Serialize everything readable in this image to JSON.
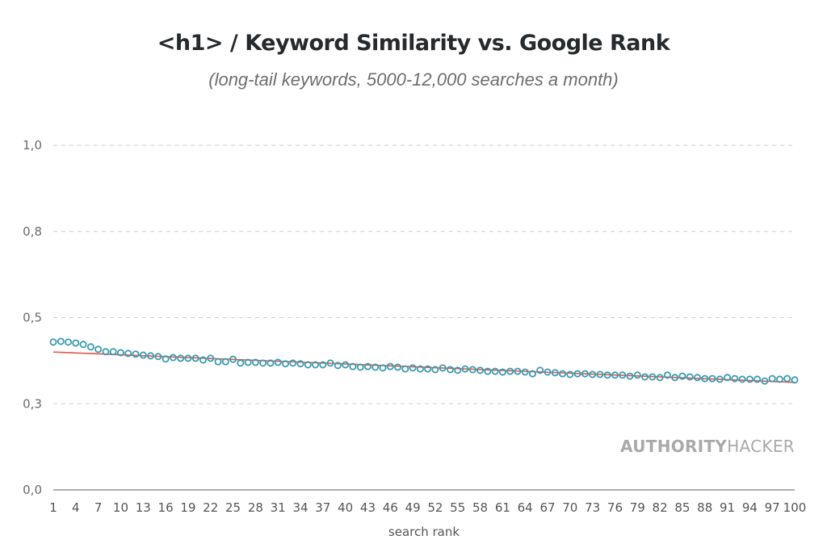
{
  "chart_data": {
    "type": "scatter",
    "title": "<h1> / Keyword Similarity vs. Google Rank",
    "subtitle": "(long-tail keywords, 5000-12,000 searches a month)",
    "xlabel": "search rank",
    "ylabel": "",
    "xlim": [
      1,
      100
    ],
    "ylim": [
      0,
      1
    ],
    "y_ticks": [
      {
        "value": 1.0,
        "label": "1,0"
      },
      {
        "value": 0.75,
        "label": "0,8"
      },
      {
        "value": 0.5,
        "label": "0,5"
      },
      {
        "value": 0.25,
        "label": "0,3"
      },
      {
        "value": 0.0,
        "label": "0,0"
      }
    ],
    "x_ticks": [
      "1",
      "4",
      "7",
      "10",
      "13",
      "16",
      "19",
      "22",
      "25",
      "28",
      "31",
      "34",
      "37",
      "40",
      "43",
      "46",
      "49",
      "52",
      "55",
      "58",
      "61",
      "64",
      "67",
      "70",
      "73",
      "76",
      "79",
      "82",
      "85",
      "88",
      "91",
      "94",
      "97",
      "100"
    ],
    "grid": "horizontal dashed",
    "series": [
      {
        "name": "keyword similarity",
        "color": "#3a9bb0",
        "marker": "hollow-circle",
        "x": [
          1,
          2,
          3,
          4,
          5,
          6,
          7,
          8,
          9,
          10,
          11,
          12,
          13,
          14,
          15,
          16,
          17,
          18,
          19,
          20,
          21,
          22,
          23,
          24,
          25,
          26,
          27,
          28,
          29,
          30,
          31,
          32,
          33,
          34,
          35,
          36,
          37,
          38,
          39,
          40,
          41,
          42,
          43,
          44,
          45,
          46,
          47,
          48,
          49,
          50,
          51,
          52,
          53,
          54,
          55,
          56,
          57,
          58,
          59,
          60,
          61,
          62,
          63,
          64,
          65,
          66,
          67,
          68,
          69,
          70,
          71,
          72,
          73,
          74,
          75,
          76,
          77,
          78,
          79,
          80,
          81,
          82,
          83,
          84,
          85,
          86,
          87,
          88,
          89,
          90,
          91,
          92,
          93,
          94,
          95,
          96,
          97,
          98,
          99,
          100
        ],
        "values": [
          0.429,
          0.431,
          0.429,
          0.426,
          0.422,
          0.415,
          0.408,
          0.401,
          0.401,
          0.398,
          0.396,
          0.394,
          0.391,
          0.389,
          0.387,
          0.38,
          0.384,
          0.382,
          0.382,
          0.382,
          0.377,
          0.382,
          0.372,
          0.372,
          0.379,
          0.368,
          0.37,
          0.37,
          0.368,
          0.368,
          0.37,
          0.366,
          0.368,
          0.366,
          0.363,
          0.363,
          0.363,
          0.368,
          0.361,
          0.363,
          0.358,
          0.356,
          0.358,
          0.356,
          0.354,
          0.358,
          0.356,
          0.351,
          0.354,
          0.351,
          0.351,
          0.349,
          0.354,
          0.349,
          0.347,
          0.351,
          0.349,
          0.347,
          0.344,
          0.344,
          0.342,
          0.344,
          0.344,
          0.342,
          0.337,
          0.347,
          0.342,
          0.34,
          0.337,
          0.335,
          0.337,
          0.337,
          0.335,
          0.335,
          0.333,
          0.333,
          0.333,
          0.33,
          0.333,
          0.328,
          0.328,
          0.326,
          0.333,
          0.326,
          0.33,
          0.328,
          0.326,
          0.323,
          0.323,
          0.321,
          0.326,
          0.323,
          0.321,
          0.321,
          0.321,
          0.316,
          0.323,
          0.321,
          0.323,
          0.319
        ]
      },
      {
        "name": "trend line",
        "type": "line",
        "color": "#e2574c",
        "x": [
          1,
          100
        ],
        "values": [
          0.4,
          0.312
        ]
      }
    ],
    "watermark": {
      "bold": "AUTHORITY",
      "light": "HACKER"
    }
  }
}
